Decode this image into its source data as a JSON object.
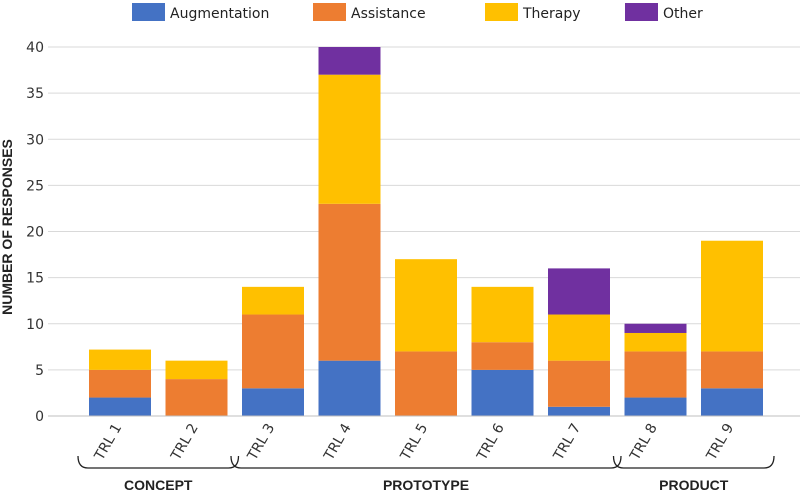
{
  "chart_data": {
    "type": "bar",
    "stacked": true,
    "title": "",
    "xlabel": "",
    "ylabel": "NUMBER OF RESPONSES",
    "ylim": [
      0,
      40
    ],
    "yticks": [
      0,
      5,
      10,
      15,
      20,
      25,
      30,
      35,
      40
    ],
    "grid": true,
    "legend_position": "top",
    "categories": [
      "TRL 1",
      "TRL 2",
      "TRL 3",
      "TRL 4",
      "TRL 5",
      "TRL 6",
      "TRL 7",
      "TRL 8",
      "TRL 9"
    ],
    "series": [
      {
        "name": "Augmentation",
        "color": "#4472C4",
        "values": [
          2,
          0,
          3,
          6,
          0,
          5,
          1,
          2,
          3
        ]
      },
      {
        "name": "Assistance",
        "color": "#ED7D31",
        "values": [
          3,
          4,
          8,
          17,
          7,
          3,
          5,
          5,
          4
        ]
      },
      {
        "name": "Therapy",
        "color": "#FFC000",
        "values": [
          2.2,
          2,
          3,
          14,
          10,
          6,
          5,
          2,
          12
        ]
      },
      {
        "name": "Other",
        "color": "#7030A0",
        "values": [
          0,
          0,
          0,
          3,
          0,
          0,
          5,
          1,
          0
        ]
      }
    ],
    "groups": [
      {
        "label": "CONCEPT",
        "categories": [
          "TRL 1",
          "TRL 2"
        ]
      },
      {
        "label": "PROTOTYPE",
        "categories": [
          "TRL 3",
          "TRL 4",
          "TRL 5",
          "TRL 6",
          "TRL 7"
        ]
      },
      {
        "label": "PRODUCT",
        "categories": [
          "TRL 8",
          "TRL 9"
        ]
      }
    ]
  }
}
